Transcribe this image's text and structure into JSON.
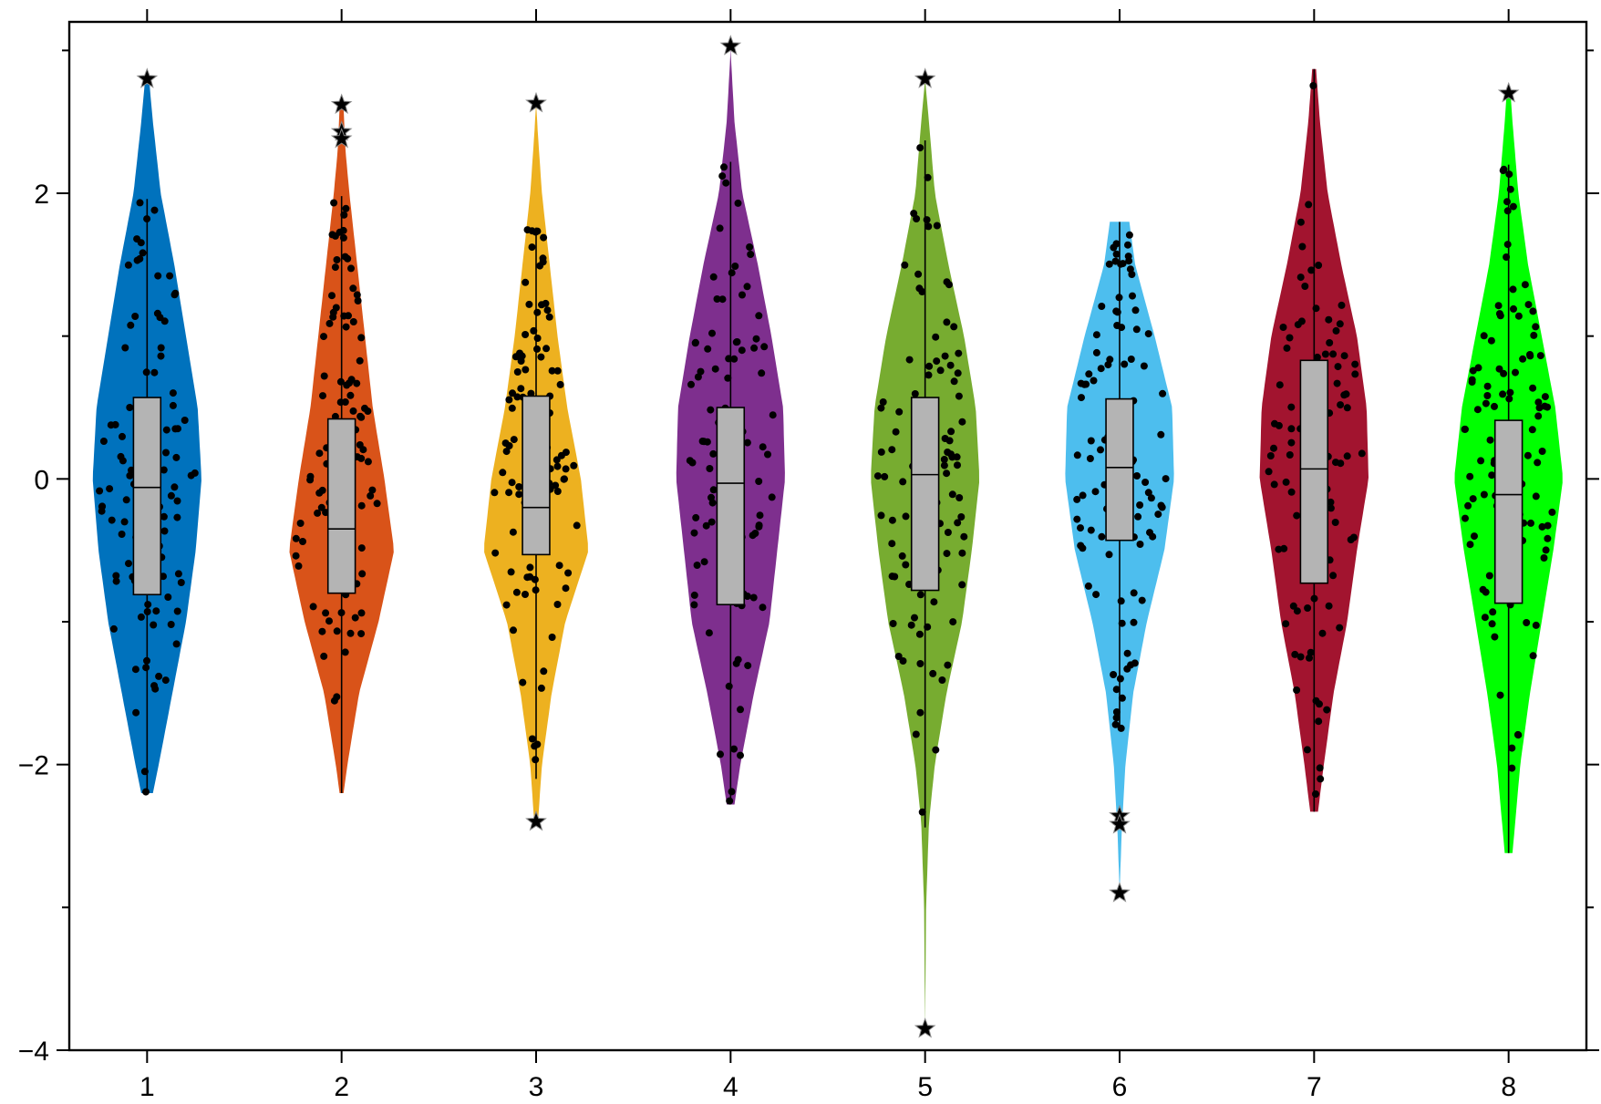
{
  "chart_data": {
    "type": "violin",
    "title": "",
    "xlabel": "",
    "ylabel": "",
    "xlim": [
      0.6,
      8.4
    ],
    "ylim": [
      -4,
      3.2
    ],
    "grid": false,
    "x_ticks": [
      {
        "value": 1,
        "label": "1"
      },
      {
        "value": 2,
        "label": "2"
      },
      {
        "value": 3,
        "label": "3"
      },
      {
        "value": 4,
        "label": "4"
      },
      {
        "value": 5,
        "label": "5"
      },
      {
        "value": 6,
        "label": "6"
      },
      {
        "value": 7,
        "label": "7"
      },
      {
        "value": 8,
        "label": "8"
      }
    ],
    "y_ticks": [
      {
        "value": -4,
        "label": "−4"
      },
      {
        "value": -2,
        "label": "−2"
      },
      {
        "value": 0,
        "label": "0"
      },
      {
        "value": 2,
        "label": "2"
      }
    ],
    "y_minor_ticks": [
      -3,
      -1,
      1,
      3
    ],
    "box_color": "#b4b4b4",
    "point_color": "#000000",
    "groups": [
      {
        "category": "1",
        "color": "#0072bd",
        "min": -2.2,
        "q1": -0.81,
        "median": -0.06,
        "q3": 0.57,
        "max": 2.8,
        "whisker_low": -2.2,
        "whisker_high": 1.96,
        "outliers": [
          2.8
        ],
        "density": [
          [
            -2.2,
            0.03
          ],
          [
            -2.0,
            0.06
          ],
          [
            -1.5,
            0.13
          ],
          [
            -1.0,
            0.2
          ],
          [
            -0.5,
            0.25
          ],
          [
            0.0,
            0.28
          ],
          [
            0.5,
            0.26
          ],
          [
            1.0,
            0.2
          ],
          [
            1.5,
            0.14
          ],
          [
            2.0,
            0.07
          ],
          [
            2.5,
            0.03
          ],
          [
            2.8,
            0.01
          ]
        ]
      },
      {
        "category": "2",
        "color": "#d95319",
        "min": -2.2,
        "q1": -0.8,
        "median": -0.35,
        "q3": 0.42,
        "max": 2.62,
        "whisker_low": -2.2,
        "whisker_high": 1.98,
        "outliers": [
          2.62,
          2.43,
          2.38
        ],
        "density": [
          [
            -2.2,
            0.01
          ],
          [
            -2.0,
            0.03
          ],
          [
            -1.5,
            0.09
          ],
          [
            -1.0,
            0.19
          ],
          [
            -0.5,
            0.27
          ],
          [
            0.0,
            0.22
          ],
          [
            0.5,
            0.16
          ],
          [
            1.0,
            0.12
          ],
          [
            1.5,
            0.08
          ],
          [
            2.0,
            0.04
          ],
          [
            2.3,
            0.02
          ],
          [
            2.6,
            0.01
          ]
        ]
      },
      {
        "category": "3",
        "color": "#edb120",
        "min": -2.4,
        "q1": -0.53,
        "median": -0.2,
        "q3": 0.58,
        "max": 2.63,
        "whisker_low": -2.1,
        "whisker_high": 1.76,
        "outliers": [
          2.63,
          -2.4
        ],
        "density": [
          [
            -2.4,
            0.01
          ],
          [
            -2.0,
            0.03
          ],
          [
            -1.5,
            0.08
          ],
          [
            -1.0,
            0.15
          ],
          [
            -0.5,
            0.27
          ],
          [
            0.0,
            0.23
          ],
          [
            0.5,
            0.16
          ],
          [
            1.0,
            0.11
          ],
          [
            1.5,
            0.07
          ],
          [
            2.0,
            0.03
          ],
          [
            2.4,
            0.01
          ],
          [
            2.63,
            0.0
          ]
        ]
      },
      {
        "category": "4",
        "color": "#7e2f8e",
        "min": -2.28,
        "q1": -0.88,
        "median": -0.03,
        "q3": 0.5,
        "max": 3.03,
        "whisker_low": -2.28,
        "whisker_high": 2.22,
        "outliers": [
          3.03
        ],
        "density": [
          [
            -2.28,
            0.02
          ],
          [
            -2.0,
            0.05
          ],
          [
            -1.5,
            0.12
          ],
          [
            -1.0,
            0.2
          ],
          [
            -0.5,
            0.24
          ],
          [
            0.0,
            0.28
          ],
          [
            0.5,
            0.27
          ],
          [
            1.0,
            0.21
          ],
          [
            1.5,
            0.14
          ],
          [
            2.0,
            0.06
          ],
          [
            2.5,
            0.02
          ],
          [
            3.0,
            0.0
          ]
        ]
      },
      {
        "category": "5",
        "color": "#77ac30",
        "min": -3.85,
        "q1": -0.78,
        "median": 0.03,
        "q3": 0.57,
        "max": 2.8,
        "whisker_low": -2.44,
        "whisker_high": 2.37,
        "outliers": [
          2.8,
          -3.85
        ],
        "density": [
          [
            -3.85,
            0.0
          ],
          [
            -3.0,
            0.005
          ],
          [
            -2.4,
            0.02
          ],
          [
            -2.0,
            0.05
          ],
          [
            -1.5,
            0.11
          ],
          [
            -1.0,
            0.19
          ],
          [
            -0.5,
            0.24
          ],
          [
            0.0,
            0.28
          ],
          [
            0.5,
            0.26
          ],
          [
            1.0,
            0.2
          ],
          [
            1.5,
            0.12
          ],
          [
            2.0,
            0.05
          ],
          [
            2.5,
            0.02
          ],
          [
            2.8,
            0.0
          ]
        ]
      },
      {
        "category": "6",
        "color": "#4dbeee",
        "min": -2.9,
        "q1": -0.43,
        "median": 0.08,
        "q3": 0.56,
        "max": 1.8,
        "whisker_low": -1.75,
        "whisker_high": 1.8,
        "outliers": [
          -2.36,
          -2.42,
          -2.9
        ],
        "density": [
          [
            -2.9,
            0.0
          ],
          [
            -2.5,
            0.01
          ],
          [
            -2.0,
            0.03
          ],
          [
            -1.5,
            0.07
          ],
          [
            -1.0,
            0.14
          ],
          [
            -0.5,
            0.23
          ],
          [
            0.0,
            0.28
          ],
          [
            0.5,
            0.27
          ],
          [
            1.0,
            0.18
          ],
          [
            1.5,
            0.08
          ],
          [
            1.8,
            0.05
          ]
        ]
      },
      {
        "category": "7",
        "color": "#a2142f",
        "min": -2.33,
        "q1": -0.73,
        "median": 0.07,
        "q3": 0.83,
        "max": 2.87,
        "whisker_low": -2.33,
        "whisker_high": 2.87,
        "outliers": [],
        "density": [
          [
            -2.33,
            0.02
          ],
          [
            -2.0,
            0.05
          ],
          [
            -1.5,
            0.1
          ],
          [
            -1.0,
            0.17
          ],
          [
            -0.5,
            0.22
          ],
          [
            0.0,
            0.28
          ],
          [
            0.5,
            0.27
          ],
          [
            1.0,
            0.22
          ],
          [
            1.5,
            0.14
          ],
          [
            2.0,
            0.07
          ],
          [
            2.5,
            0.03
          ],
          [
            2.87,
            0.01
          ]
        ]
      },
      {
        "category": "8",
        "color": "#00ff00",
        "min": -2.62,
        "q1": -0.87,
        "median": -0.11,
        "q3": 0.41,
        "max": 2.7,
        "whisker_low": -2.62,
        "whisker_high": 2.2,
        "outliers": [
          2.7
        ],
        "density": [
          [
            -2.62,
            0.02
          ],
          [
            -2.0,
            0.06
          ],
          [
            -1.5,
            0.11
          ],
          [
            -1.0,
            0.17
          ],
          [
            -0.5,
            0.23
          ],
          [
            0.0,
            0.28
          ],
          [
            0.5,
            0.24
          ],
          [
            1.0,
            0.17
          ],
          [
            1.5,
            0.1
          ],
          [
            2.0,
            0.05
          ],
          [
            2.5,
            0.02
          ],
          [
            2.7,
            0.01
          ]
        ]
      }
    ]
  }
}
